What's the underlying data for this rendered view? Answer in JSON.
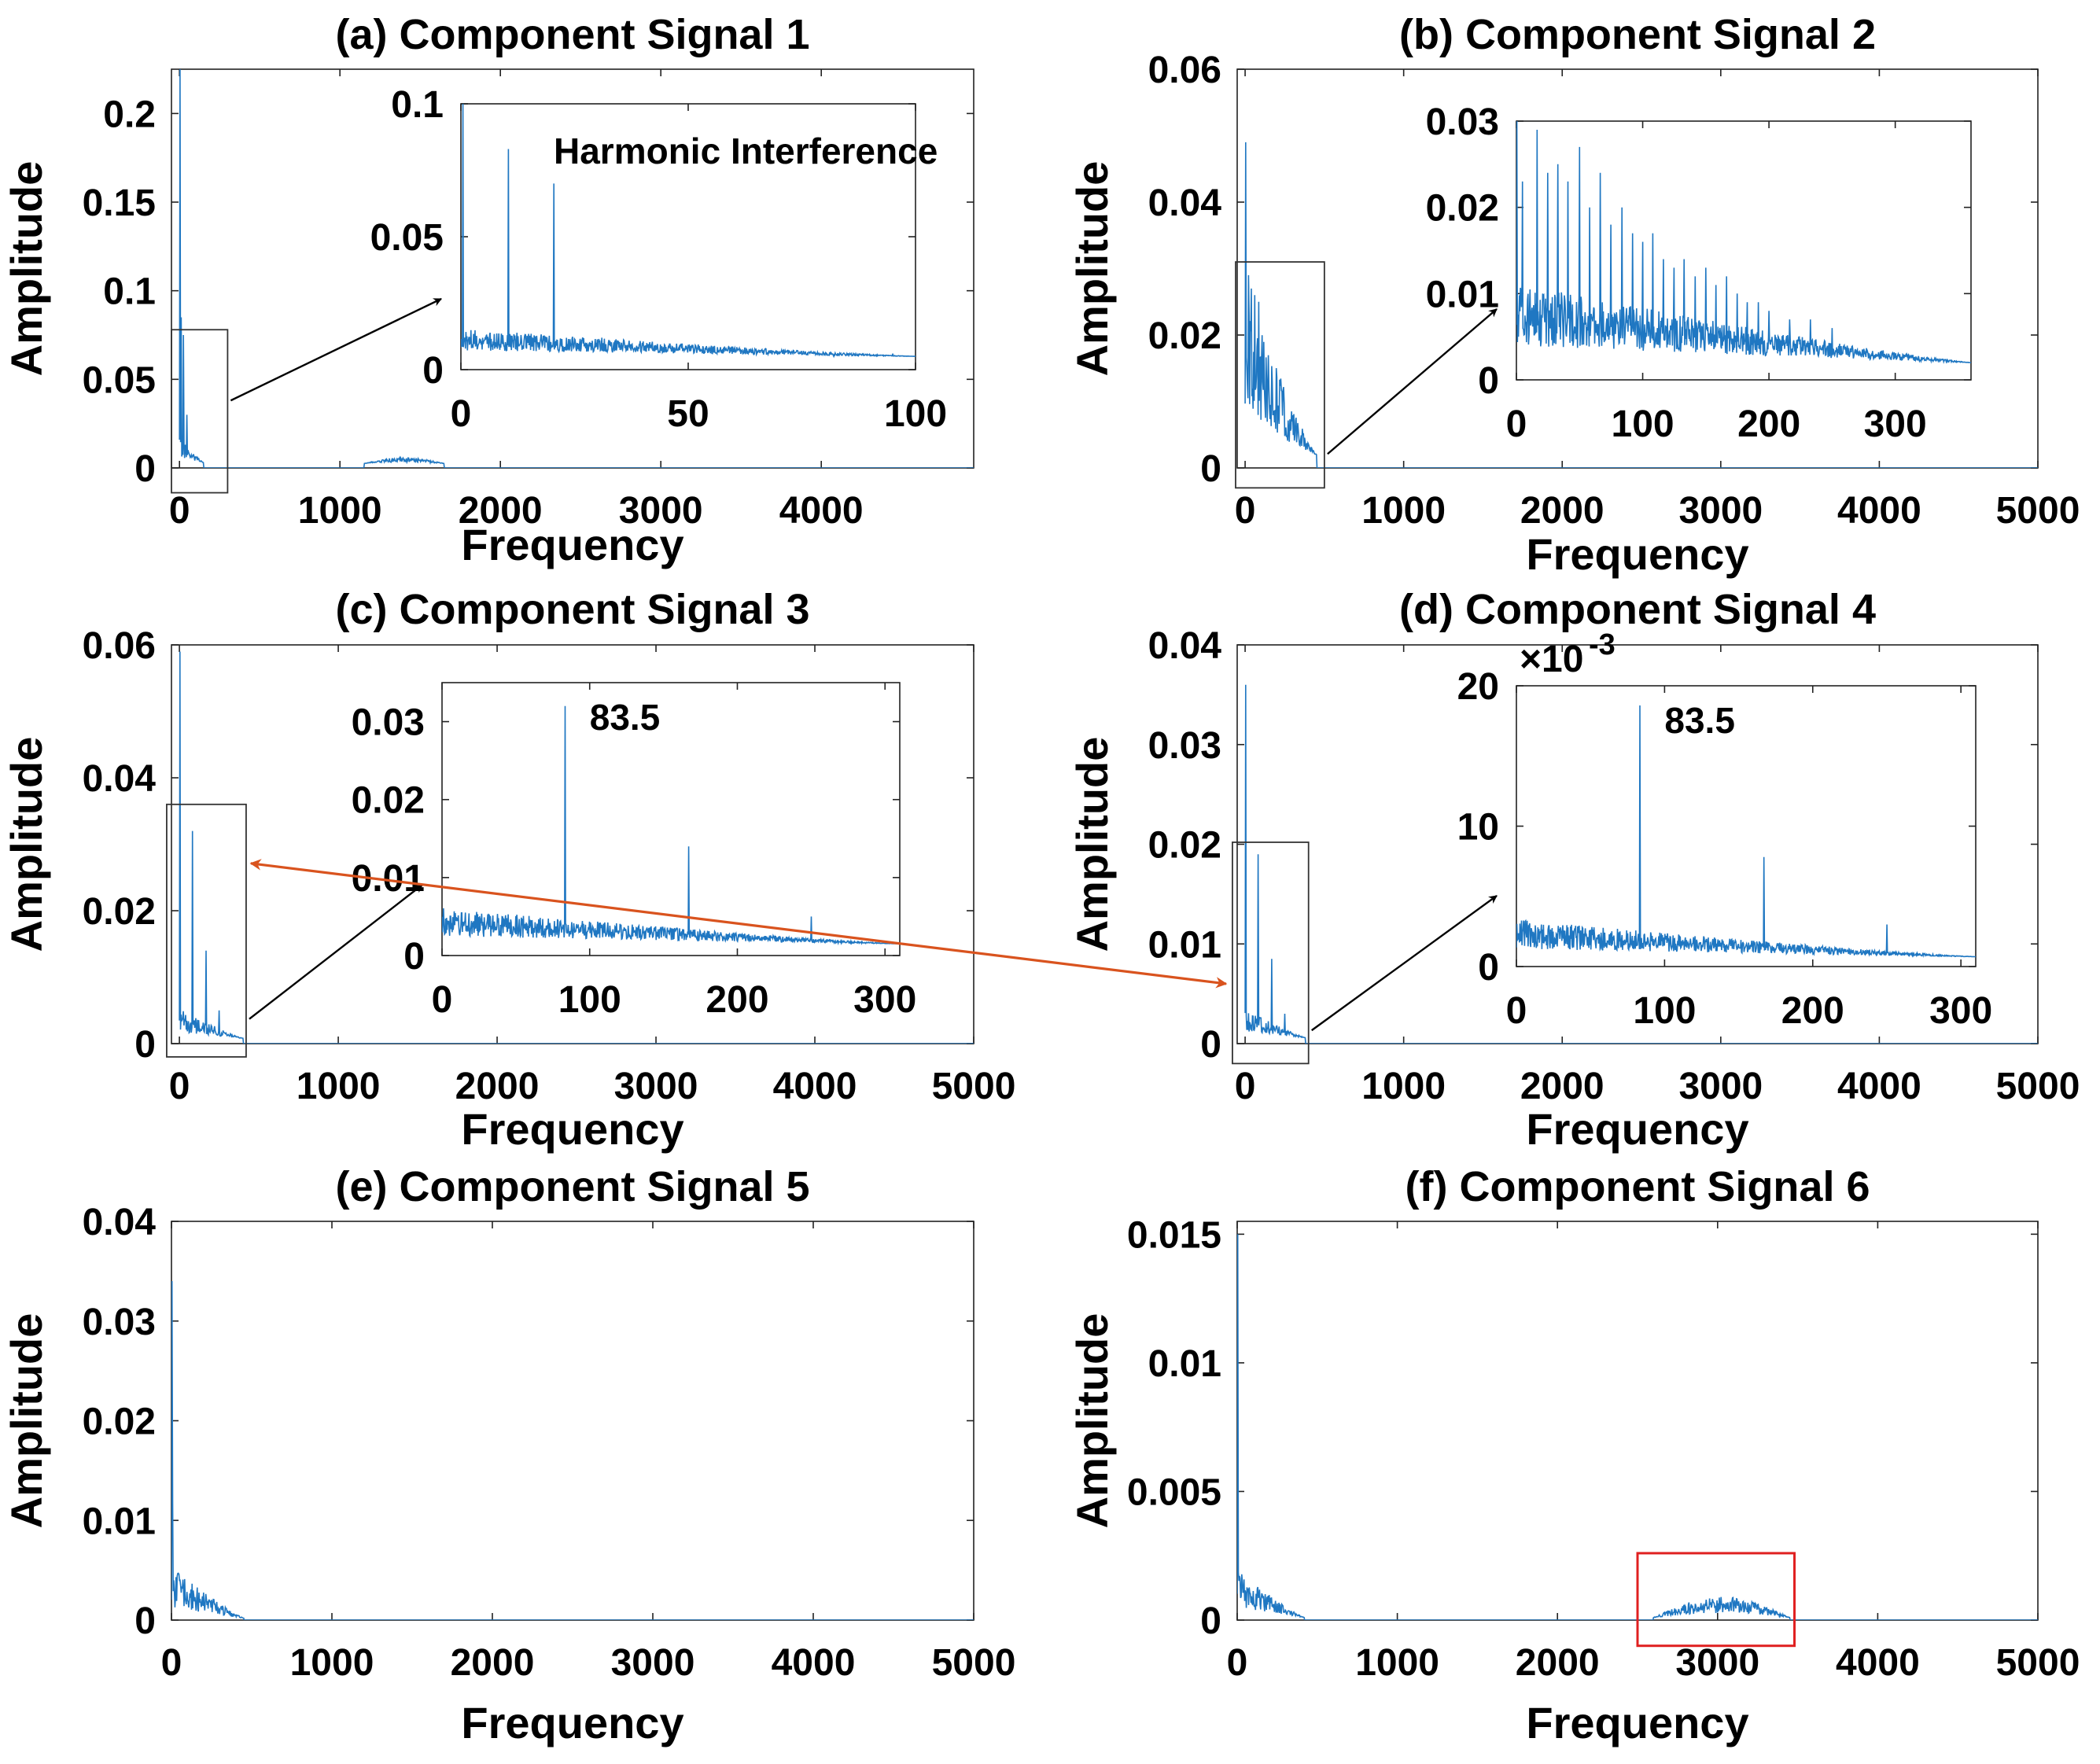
{
  "chart_data": [
    {
      "id": "a",
      "type": "line",
      "title": "(a) Component Signal 1",
      "xlabel": "Frequency",
      "ylabel": "Amplitude",
      "xlim": [
        -50,
        4950
      ],
      "ylim": [
        0,
        0.225
      ],
      "xticks": [
        0,
        1000,
        2000,
        3000,
        4000
      ],
      "xtick_labels": [
        "0",
        "1000",
        "2000",
        "3000",
        "4000"
      ],
      "yticks": [
        0,
        0.05,
        0.1,
        0.15,
        0.2
      ],
      "ytick_labels": [
        "0",
        "0.05",
        "0.1",
        "0.15",
        "0.2"
      ],
      "spectrum": {
        "peaks": [
          [
            2,
            0.225
          ],
          [
            12,
            0.085
          ],
          [
            25,
            0.075
          ],
          [
            45,
            0.03
          ]
        ],
        "envelopes": [
          [
            0,
            150,
            0.012,
            0.003
          ],
          [
            1150,
            1650,
            0.003,
            0.0025
          ]
        ],
        "seed": 11
      },
      "zoom_box": {
        "x": [
          -50,
          300
        ],
        "y": [
          -0.014,
          0.078
        ]
      },
      "inset": {
        "xlim": [
          0,
          100
        ],
        "ylim": [
          0,
          0.1
        ],
        "xticks": [
          0,
          50,
          100
        ],
        "xtick_labels": [
          "0",
          "50",
          "100"
        ],
        "yticks": [
          0,
          0.05,
          0.1
        ],
        "ytick_labels": [
          "0",
          "0.05",
          "0.1"
        ],
        "annotation": "Harmonic Interference",
        "spectrum": {
          "peaks": [
            [
              0.5,
              0.1
            ],
            [
              10.5,
              0.083
            ],
            [
              20.5,
              0.07
            ],
            [
              31,
              0.012
            ],
            [
              44,
              0.007
            ],
            [
              82,
              0.005
            ],
            [
              95,
              0.006
            ]
          ],
          "envelopes": [
            [
              0,
              100,
              0.009,
              0.005
            ]
          ],
          "seed": 12
        }
      }
    },
    {
      "id": "b",
      "type": "line",
      "title": "(b) Component Signal 2",
      "xlabel": "Frequency",
      "ylabel": "Amplitude",
      "xlim": [
        -50,
        5000
      ],
      "ylim": [
        0,
        0.06
      ],
      "xticks": [
        0,
        1000,
        2000,
        3000,
        4000,
        5000
      ],
      "xtick_labels": [
        "0",
        "1000",
        "2000",
        "3000",
        "4000",
        "5000"
      ],
      "yticks": [
        0,
        0.02,
        0.04,
        0.06
      ],
      "ytick_labels": [
        "0",
        "0.02",
        "0.04",
        "0.06"
      ],
      "spectrum": {
        "peaks": [
          [
            3,
            0.049
          ],
          [
            20,
            0.029
          ],
          [
            40,
            0.027
          ],
          [
            60,
            0.026
          ],
          [
            85,
            0.025
          ]
        ],
        "envelopes": [
          [
            0,
            450,
            0.022,
            0.002
          ]
        ],
        "seed": 21
      },
      "zoom_box": {
        "x": [
          -60,
          500
        ],
        "y": [
          -0.003,
          0.031
        ]
      },
      "inset": {
        "xlim": [
          0,
          360
        ],
        "ylim": [
          0,
          0.03
        ],
        "xticks": [
          0,
          100,
          200,
          300
        ],
        "xtick_labels": [
          "0",
          "100",
          "200",
          "300"
        ],
        "yticks": [
          0,
          0.01,
          0.02,
          0.03
        ],
        "ytick_labels": [
          "0",
          "0.01",
          "0.02",
          "0.03"
        ],
        "annotation": "",
        "spectrum": {
          "peaks": [
            [
              0.5,
              0.03
            ],
            [
              5,
              0.023
            ],
            [
              16.5,
              0.029
            ],
            [
              25,
              0.024
            ],
            [
              33,
              0.025
            ],
            [
              41,
              0.023
            ],
            [
              50,
              0.027
            ],
            [
              58,
              0.02
            ],
            [
              66.5,
              0.024
            ],
            [
              75,
              0.018
            ],
            [
              83.5,
              0.02
            ],
            [
              92,
              0.017
            ],
            [
              100,
              0.016
            ],
            [
              108,
              0.017
            ],
            [
              116.5,
              0.014
            ],
            [
              125,
              0.013
            ],
            [
              133,
              0.014
            ],
            [
              141.5,
              0.012
            ],
            [
              150,
              0.013
            ],
            [
              158,
              0.011
            ],
            [
              166.5,
              0.012
            ],
            [
              175,
              0.01
            ],
            [
              183,
              0.009
            ],
            [
              191.5,
              0.009
            ],
            [
              200,
              0.008
            ],
            [
              216.5,
              0.007
            ],
            [
              233,
              0.007
            ],
            [
              250,
              0.006
            ]
          ],
          "envelopes": [
            [
              0,
              360,
              0.008,
              0.002
            ]
          ],
          "seed": 22
        }
      }
    },
    {
      "id": "c",
      "type": "line",
      "title": "(c) Component Signal 3",
      "xlabel": "Frequency",
      "ylabel": "Amplitude",
      "xlim": [
        -50,
        5000
      ],
      "ylim": [
        0,
        0.06
      ],
      "xticks": [
        0,
        1000,
        2000,
        3000,
        4000,
        5000
      ],
      "xtick_labels": [
        "0",
        "1000",
        "2000",
        "3000",
        "4000",
        "5000"
      ],
      "yticks": [
        0,
        0.02,
        0.04,
        0.06
      ],
      "ytick_labels": [
        "0",
        "0.02",
        "0.04",
        "0.06"
      ],
      "spectrum": {
        "peaks": [
          [
            2,
            0.059
          ],
          [
            83.5,
            0.032
          ],
          [
            167,
            0.014
          ],
          [
            250,
            0.005
          ]
        ],
        "envelopes": [
          [
            0,
            400,
            0.004,
            0.0008
          ]
        ],
        "seed": 31
      },
      "zoom_box": {
        "x": [
          -80,
          420
        ],
        "y": [
          -0.002,
          0.036
        ]
      },
      "inset": {
        "xlim": [
          0,
          310
        ],
        "ylim": [
          0,
          0.035
        ],
        "xticks": [
          0,
          100,
          200,
          300
        ],
        "xtick_labels": [
          "0",
          "100",
          "200",
          "300"
        ],
        "yticks": [
          0,
          0.01,
          0.02,
          0.03
        ],
        "ytick_labels": [
          "0",
          "0.01",
          "0.02",
          "0.03"
        ],
        "annotation": "83.5",
        "spectrum": {
          "peaks": [
            [
              83.5,
              0.032
            ],
            [
              167,
              0.014
            ],
            [
              250,
              0.005
            ]
          ],
          "envelopes": [
            [
              0,
              310,
              0.004,
              0.0015
            ]
          ],
          "seed": 32
        }
      }
    },
    {
      "id": "d",
      "type": "line",
      "title": "(d) Component Signal 4",
      "xlabel": "Frequency",
      "ylabel": "Amplitude",
      "xlim": [
        -50,
        5000
      ],
      "ylim": [
        0,
        0.04
      ],
      "xticks": [
        0,
        1000,
        2000,
        3000,
        4000,
        5000
      ],
      "xtick_labels": [
        "0",
        "1000",
        "2000",
        "3000",
        "4000",
        "5000"
      ],
      "yticks": [
        0,
        0.01,
        0.02,
        0.03,
        0.04
      ],
      "ytick_labels": [
        "0",
        "0.01",
        "0.02",
        "0.03",
        "0.04"
      ],
      "spectrum": {
        "peaks": [
          [
            2,
            0.036
          ],
          [
            83.5,
            0.019
          ],
          [
            167,
            0.0085
          ],
          [
            250,
            0.003
          ]
        ],
        "envelopes": [
          [
            0,
            380,
            0.0025,
            0.0006
          ]
        ],
        "seed": 41
      },
      "zoom_box": {
        "x": [
          -80,
          400
        ],
        "y": [
          -0.002,
          0.0202
        ]
      },
      "inset": {
        "xlim": [
          0,
          310
        ],
        "ylim": [
          0,
          20
        ],
        "xticks": [
          0,
          100,
          200,
          300
        ],
        "xtick_labels": [
          "0",
          "100",
          "200",
          "300"
        ],
        "yticks": [
          0,
          10,
          20
        ],
        "ytick_labels": [
          "0",
          "10",
          "20"
        ],
        "scale_label": "×10",
        "scale_exp": "-3",
        "annotation": "83.5",
        "spectrum": {
          "peaks": [
            [
              83.5,
              18.6
            ],
            [
              167,
              7.8
            ],
            [
              250,
              3.0
            ]
          ],
          "envelopes": [
            [
              0,
              310,
              2.3,
              0.7
            ]
          ],
          "seed": 42
        }
      }
    },
    {
      "id": "e",
      "type": "line",
      "title": "(e) Component Signal 5",
      "xlabel": "Frequency",
      "ylabel": "Amplitude",
      "xlim": [
        0,
        5000
      ],
      "ylim": [
        0,
        0.04
      ],
      "xticks": [
        0,
        1000,
        2000,
        3000,
        4000,
        5000
      ],
      "xtick_labels": [
        "0",
        "1000",
        "2000",
        "3000",
        "4000",
        "5000"
      ],
      "yticks": [
        0,
        0.01,
        0.02,
        0.03,
        0.04
      ],
      "ytick_labels": [
        "0",
        "0.01",
        "0.02",
        "0.03",
        "0.04"
      ],
      "spectrum": {
        "peaks": [
          [
            2,
            0.034
          ],
          [
            8,
            0.012
          ]
        ],
        "envelopes": [
          [
            0,
            450,
            0.0045,
            0.0002
          ]
        ],
        "seed": 51
      }
    },
    {
      "id": "f",
      "type": "line",
      "title": "(f) Component Signal 6",
      "xlabel": "Frequency",
      "ylabel": "Amplitude",
      "xlim": [
        0,
        5000
      ],
      "ylim": [
        0,
        0.0155
      ],
      "xticks": [
        0,
        1000,
        2000,
        3000,
        4000,
        5000
      ],
      "xtick_labels": [
        "0",
        "1000",
        "2000",
        "3000",
        "4000",
        "5000"
      ],
      "yticks": [
        0,
        0.005,
        0.01,
        0.015
      ],
      "ytick_labels": [
        "0",
        "0.005",
        "0.01",
        "0.015"
      ],
      "spectrum": {
        "peaks": [
          [
            2,
            0.015
          ]
        ],
        "envelopes": [
          [
            0,
            420,
            0.0016,
            0.0001
          ],
          [
            2600,
            3450,
            0.0007,
            0.0001
          ]
        ],
        "seed": 61
      },
      "highlight_box": {
        "x": [
          2500,
          3480
        ],
        "y": [
          -0.001,
          0.0026
        ]
      }
    }
  ],
  "colors": {
    "line": "#1f77c2",
    "arrow": "#000000",
    "link_arrow": "#d9531e",
    "highlight": "#e02020"
  }
}
